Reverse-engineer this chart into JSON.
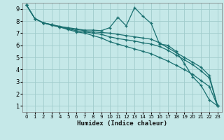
{
  "xlabel": "Humidex (Indice chaleur)",
  "ylabel": "",
  "bg_color": "#c5e8e8",
  "grid_color": "#a0cccc",
  "line_color": "#1a7070",
  "xlim": [
    -0.5,
    23.5
  ],
  "ylim": [
    0.5,
    9.5
  ],
  "xticks": [
    0,
    1,
    2,
    3,
    4,
    5,
    6,
    7,
    8,
    9,
    10,
    11,
    12,
    13,
    14,
    15,
    16,
    17,
    18,
    19,
    20,
    21,
    22,
    23
  ],
  "yticks": [
    1,
    2,
    3,
    4,
    5,
    6,
    7,
    8,
    9
  ],
  "series": [
    {
      "x": [
        0,
        1,
        2,
        3,
        4,
        5,
        6,
        7,
        8,
        9,
        10,
        11,
        12,
        13,
        14,
        15,
        16,
        17,
        18,
        19,
        20,
        21,
        22,
        23
      ],
      "y": [
        9.3,
        8.2,
        7.85,
        7.7,
        7.55,
        7.45,
        7.35,
        7.25,
        7.25,
        7.2,
        7.45,
        8.3,
        7.6,
        9.1,
        8.4,
        7.8,
        6.1,
        6.0,
        5.5,
        4.5,
        3.4,
        2.7,
        1.5,
        1.0
      ]
    },
    {
      "x": [
        0,
        1,
        2,
        3,
        4,
        5,
        6,
        7,
        8,
        9,
        10,
        11,
        12,
        13,
        14,
        15,
        16,
        17,
        18,
        19,
        20,
        21,
        22,
        23
      ],
      "y": [
        9.3,
        8.2,
        7.85,
        7.7,
        7.55,
        7.4,
        7.3,
        7.2,
        7.1,
        7.05,
        7.0,
        6.9,
        6.8,
        6.7,
        6.6,
        6.5,
        6.2,
        5.8,
        5.4,
        5.0,
        4.6,
        4.2,
        3.5,
        1.0
      ]
    },
    {
      "x": [
        0,
        1,
        2,
        3,
        4,
        5,
        6,
        7,
        8,
        9,
        10,
        11,
        12,
        13,
        14,
        15,
        16,
        17,
        18,
        19,
        20,
        21,
        22,
        23
      ],
      "y": [
        9.3,
        8.2,
        7.85,
        7.7,
        7.5,
        7.35,
        7.2,
        7.1,
        7.0,
        6.9,
        6.7,
        6.55,
        6.45,
        6.35,
        6.2,
        6.1,
        5.9,
        5.6,
        5.2,
        4.8,
        4.4,
        3.9,
        3.3,
        1.0
      ]
    },
    {
      "x": [
        0,
        1,
        2,
        3,
        4,
        5,
        6,
        7,
        8,
        9,
        10,
        11,
        12,
        13,
        14,
        15,
        16,
        17,
        18,
        19,
        20,
        21,
        22,
        23
      ],
      "y": [
        9.3,
        8.2,
        7.85,
        7.65,
        7.5,
        7.3,
        7.1,
        7.0,
        6.8,
        6.6,
        6.3,
        6.1,
        5.9,
        5.7,
        5.5,
        5.3,
        5.0,
        4.7,
        4.35,
        4.0,
        3.6,
        3.1,
        2.6,
        1.0
      ]
    }
  ]
}
